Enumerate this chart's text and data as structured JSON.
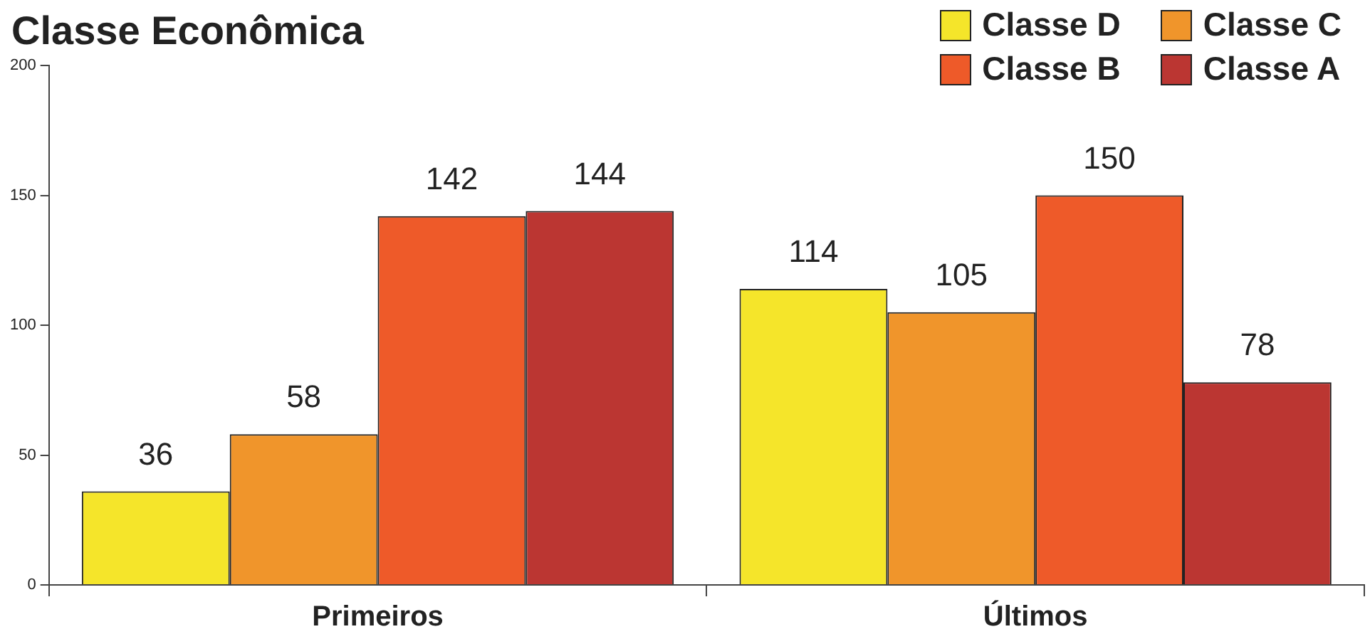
{
  "chart_data": {
    "type": "bar",
    "title": "Classe Econômica",
    "categories": [
      "Primeiros",
      "Últimos"
    ],
    "series": [
      {
        "name": "Classe D",
        "color": "#f5e52a",
        "values": [
          36,
          114
        ]
      },
      {
        "name": "Classe C",
        "color": "#f0952b",
        "values": [
          58,
          105
        ]
      },
      {
        "name": "Classe B",
        "color": "#ee5a29",
        "values": [
          142,
          150
        ]
      },
      {
        "name": "Classe A",
        "color": "#bb3632",
        "values": [
          144,
          78
        ]
      }
    ],
    "ylim": [
      0,
      200
    ],
    "yticks": [
      0,
      50,
      100,
      150,
      200
    ],
    "grid": false,
    "legend": "top right",
    "data_labels": true
  }
}
